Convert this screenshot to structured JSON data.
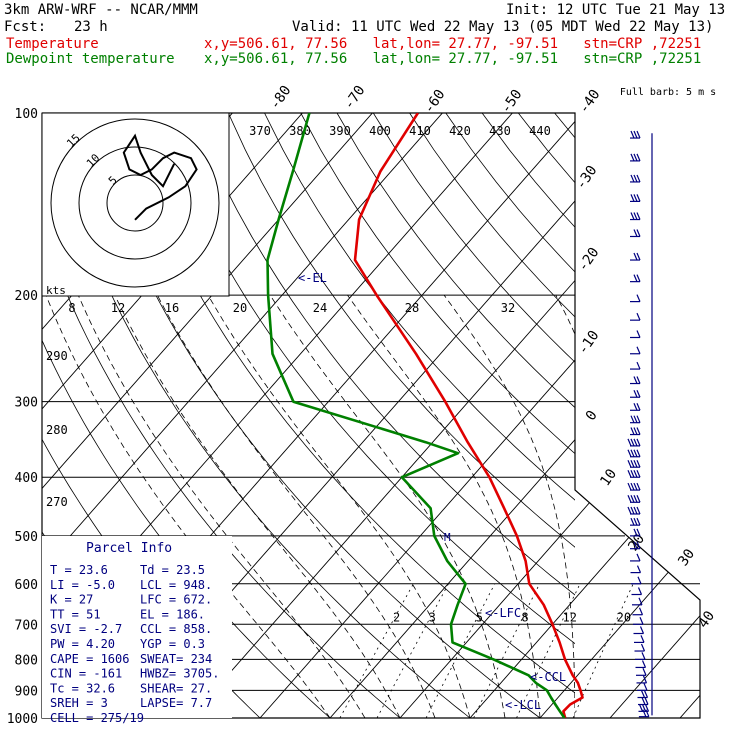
{
  "header": {
    "model": "3km ARW-WRF -- NCAR/MMM",
    "init": "Init: 12 UTC Tue 21 May 13",
    "fcst_label": "Fcst:",
    "fcst_value": "23 h",
    "valid": "Valid: 11 UTC Wed 22 May 13 (05 MDT Wed 22 May 13)",
    "temp_label": "Temperature",
    "temp_loc": "x,y=506.61, 77.56   lat,lon= 27.77, -97.51   stn=CRP ,72251",
    "dew_label": "Dewpoint temperature",
    "dew_loc": "x,y=506.61, 77.56   lat,lon= 27.77, -97.51   stn=CRP ,72251"
  },
  "colors": {
    "temperature": "#e00000",
    "dewpoint": "#008000",
    "info": "#000080"
  },
  "chart_data": {
    "type": "line",
    "chart_kind": "skew-T log-P sounding",
    "pressure_ticks": [
      "100",
      "200",
      "300",
      "400",
      "500",
      "600",
      "700",
      "800",
      "900",
      "1000"
    ],
    "isotherm_labels": [
      "-80",
      "-70",
      "-60",
      "-50",
      "-40",
      "-30",
      "-20",
      "-10",
      "0",
      "10",
      "20",
      "30",
      "40"
    ],
    "theta_labels": [
      "370",
      "380",
      "390",
      "400",
      "410",
      "420",
      "430",
      "440"
    ],
    "theta_side_labels": [
      "290",
      "280",
      "270"
    ],
    "mixing_ratio_labels": [
      "2",
      "3",
      "5",
      "8",
      "12",
      "20"
    ],
    "series": [
      {
        "name": "Temperature",
        "p": [
          1000,
          975,
          950,
          925,
          900,
          875,
          850,
          800,
          750,
          700,
          650,
          600,
          550,
          500,
          450,
          400,
          350,
          300,
          250,
          200,
          175,
          150,
          125,
          100
        ],
        "t": [
          23.6,
          22.5,
          22.6,
          23.5,
          22.3,
          21.0,
          19.3,
          16.2,
          13.3,
          10.0,
          6.3,
          1.6,
          -1.8,
          -6.2,
          -11.5,
          -17.5,
          -25.0,
          -33.3,
          -43.5,
          -56.5,
          -64.0,
          -68.5,
          -71.5,
          -73.5
        ]
      },
      {
        "name": "Dewpoint temperature",
        "p": [
          1000,
          975,
          950,
          925,
          900,
          875,
          850,
          800,
          750,
          700,
          650,
          600,
          550,
          500,
          450,
          400,
          365,
          350,
          300,
          250,
          200,
          175,
          150,
          125,
          100
        ],
        "t": [
          23.5,
          22.0,
          20.5,
          19.0,
          17.5,
          15.0,
          13.0,
          6.0,
          -2.0,
          -4.5,
          -6.0,
          -7.5,
          -13.0,
          -18.0,
          -22.0,
          -30.0,
          -25.0,
          -31.0,
          -55.0,
          -64.0,
          -72.0,
          -76.5,
          -80.0,
          -84.0,
          -89.0
        ]
      }
    ],
    "annotations": [
      "<-EL",
      "<-LFC",
      "<-CCL",
      "<-LCL",
      "M"
    ],
    "hodograph": {
      "ring_labels": [
        "5",
        "10",
        "15"
      ],
      "units": "kts",
      "u": [
        0,
        2,
        6,
        9,
        11,
        10,
        7,
        5,
        3,
        1,
        -1,
        -2,
        0,
        1,
        3,
        5,
        7
      ],
      "v": [
        -3,
        -1,
        1,
        3,
        6,
        8,
        9,
        8,
        6,
        5,
        6,
        9,
        12,
        9,
        5,
        3,
        7
      ]
    },
    "wind_axis_label": "Full barb: 5 m s",
    "wind_levels_hpa": [
      110,
      120,
      130,
      140,
      150,
      160,
      175,
      190,
      205,
      220,
      235,
      250,
      265,
      280,
      295,
      310,
      325,
      340,
      355,
      370,
      385,
      400,
      420,
      440,
      460,
      480,
      500,
      525,
      550,
      575,
      600,
      625,
      650,
      675,
      700,
      725,
      750,
      775,
      800,
      825,
      850,
      875,
      900,
      925,
      950,
      975,
      995
    ],
    "wind_barbs_full": [
      3,
      3,
      3,
      3,
      3,
      2,
      2,
      2,
      1,
      1,
      1,
      1,
      1,
      2,
      2,
      2,
      3,
      3,
      4,
      4,
      4,
      4,
      4,
      4,
      4,
      3,
      2,
      2,
      1,
      1,
      1,
      1,
      1,
      1,
      1,
      1,
      1,
      1,
      1,
      1,
      1,
      1,
      1,
      2,
      2,
      3,
      2
    ]
  },
  "parcel": {
    "title": "Parcel Info",
    "rows": [
      {
        "a": "T   =   23.6",
        "b": "Td  =  23.5"
      },
      {
        "a": "LI  =   -5.0",
        "b": "LCL =  948."
      },
      {
        "a": "K   =     27",
        "b": "LFC =  672."
      },
      {
        "a": "TT  =     51",
        "b": "EL  =  186."
      },
      {
        "a": "SVI =   -2.7",
        "b": "CCL =  858."
      },
      {
        "a": "PW  =   4.20",
        "b": "YGP =   0.3"
      },
      {
        "a": "CAPE =  1606",
        "b": "SWEAT=  234"
      },
      {
        "a": "CIN =   -161",
        "b": "HWBZ= 3705."
      },
      {
        "a": "Tc  =   32.6",
        "b": "SHEAR=  27."
      },
      {
        "a": "SREH =     3",
        "b": "LAPSE=  7.7"
      },
      {
        "a": "CELL = 275/19",
        "b": ""
      }
    ]
  }
}
